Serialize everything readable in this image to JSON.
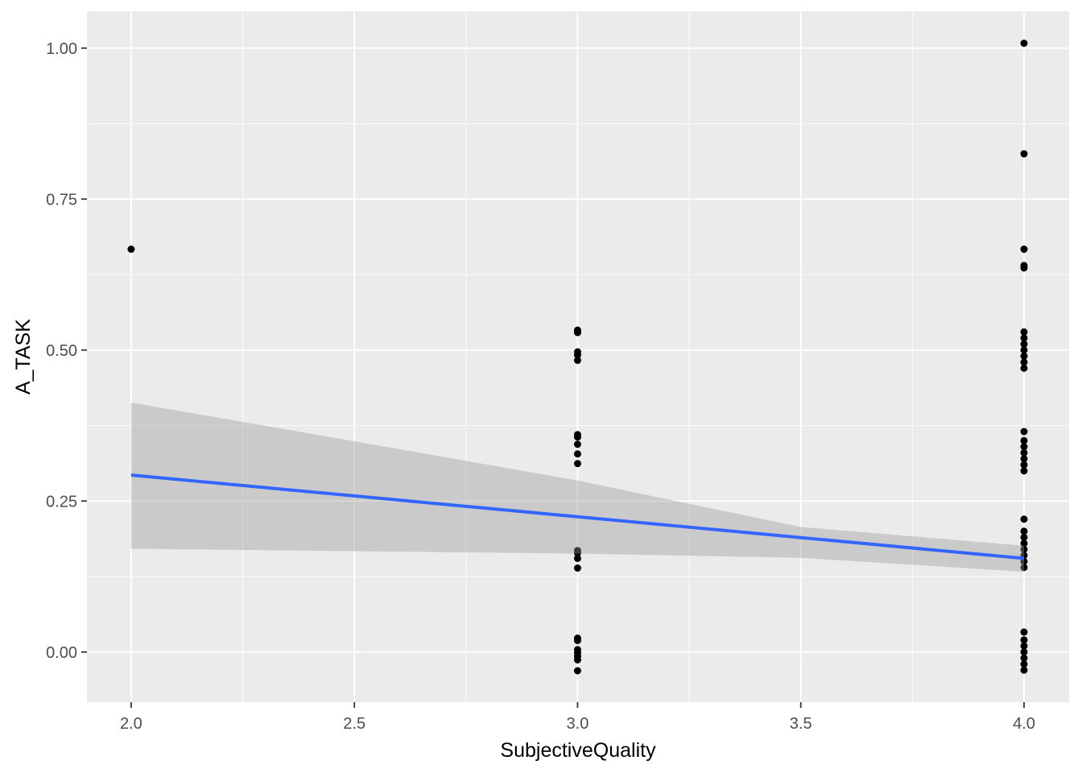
{
  "chart_data": {
    "type": "scatter",
    "title": "",
    "xlabel": "SubjectiveQuality",
    "ylabel": "A_TASK",
    "xlim": [
      1.901,
      4.101
    ],
    "ylim": [
      -0.083,
      1.061
    ],
    "x_ticks": [
      2.0,
      2.5,
      3.0,
      3.5,
      4.0
    ],
    "x_tick_labels": [
      "2.0",
      "2.5",
      "3.0",
      "3.5",
      "4.0"
    ],
    "y_ticks": [
      0.0,
      0.25,
      0.5,
      0.75,
      1.0
    ],
    "y_tick_labels": [
      "0.00",
      "0.25",
      "0.50",
      "0.75",
      "1.00"
    ],
    "grid": true,
    "legend": "none",
    "points": [
      {
        "x": 2,
        "y": [
          0.667
        ]
      },
      {
        "x": 3,
        "y": [
          0.533,
          0.529,
          0.497,
          0.492,
          0.483,
          0.36,
          0.356,
          0.344,
          0.328,
          0.312,
          0.168,
          0.164,
          0.155,
          0.139,
          0.023,
          0.019,
          0.004,
          -0.001,
          -0.007,
          -0.013,
          -0.031
        ]
      },
      {
        "x": 4,
        "y": [
          1.008,
          0.825,
          0.667,
          0.64,
          0.636,
          0.53,
          0.52,
          0.51,
          0.5,
          0.49,
          0.48,
          0.47,
          0.365,
          0.35,
          0.34,
          0.33,
          0.32,
          0.31,
          0.3,
          0.22,
          0.2,
          0.19,
          0.18,
          0.17,
          0.16,
          0.15,
          0.14,
          0.033,
          0.02,
          0.01,
          0.0,
          -0.01,
          -0.02,
          -0.03
        ]
      }
    ],
    "fit": {
      "method": "lm",
      "color": "#3366FF",
      "x": [
        2.0,
        4.0
      ],
      "y": [
        0.293,
        0.155
      ]
    },
    "ribbon": {
      "color": "#999999",
      "x": [
        2.0,
        2.5,
        3.0,
        3.5,
        4.0
      ],
      "lower": [
        0.171,
        0.167,
        0.163,
        0.156,
        0.133
      ],
      "upper": [
        0.413,
        0.349,
        0.284,
        0.207,
        0.176
      ]
    }
  }
}
